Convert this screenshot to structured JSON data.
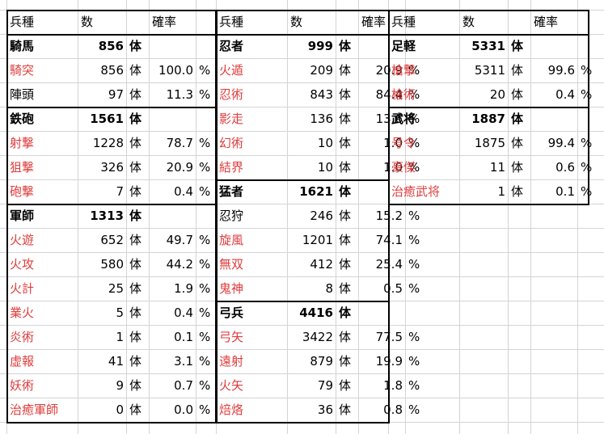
{
  "header": {
    "type": "兵種",
    "count": "数",
    "rate": "確率"
  },
  "unit": "体",
  "pct": "%",
  "groups": [
    {
      "col": 0,
      "row": 1,
      "name": "騎馬",
      "total": "856",
      "items": [
        {
          "name": "騎突",
          "count": "856",
          "rate": "100.0"
        },
        {
          "name": "陣頭",
          "count": "97",
          "rate": "11.3",
          "black": true
        }
      ]
    },
    {
      "col": 0,
      "row": 4,
      "name": "鉄砲",
      "total": "1561",
      "items": [
        {
          "name": "射撃",
          "count": "1228",
          "rate": "78.7"
        },
        {
          "name": "狙撃",
          "count": "326",
          "rate": "20.9"
        },
        {
          "name": "砲撃",
          "count": "7",
          "rate": "0.4"
        }
      ]
    },
    {
      "col": 0,
      "row": 8,
      "name": "軍師",
      "total": "1313",
      "items": [
        {
          "name": "火遊",
          "count": "652",
          "rate": "49.7"
        },
        {
          "name": "火攻",
          "count": "580",
          "rate": "44.2"
        },
        {
          "name": "火計",
          "count": "25",
          "rate": "1.9"
        },
        {
          "name": "業火",
          "count": "5",
          "rate": "0.4"
        },
        {
          "name": "炎術",
          "count": "1",
          "rate": "0.1"
        },
        {
          "name": "虚報",
          "count": "41",
          "rate": "3.1"
        },
        {
          "name": "妖術",
          "count": "9",
          "rate": "0.7"
        },
        {
          "name": "治癒軍師",
          "count": "0",
          "rate": "0.0"
        }
      ]
    },
    {
      "col": 1,
      "row": 1,
      "name": "忍者",
      "total": "999",
      "items": [
        {
          "name": "火遁",
          "count": "209",
          "rate": "20.9"
        },
        {
          "name": "忍術",
          "count": "843",
          "rate": "84.4"
        },
        {
          "name": "影走",
          "count": "136",
          "rate": "13.6"
        },
        {
          "name": "幻術",
          "count": "10",
          "rate": "1.0"
        },
        {
          "name": "結界",
          "count": "10",
          "rate": "1.0"
        }
      ]
    },
    {
      "col": 1,
      "row": 7,
      "name": "猛者",
      "total": "1621",
      "items": [
        {
          "name": "忍狩",
          "count": "246",
          "rate": "15.2",
          "black": true
        },
        {
          "name": "旋風",
          "count": "1201",
          "rate": "74.1"
        },
        {
          "name": "無双",
          "count": "412",
          "rate": "25.4"
        },
        {
          "name": "鬼神",
          "count": "8",
          "rate": "0.5"
        }
      ]
    },
    {
      "col": 1,
      "row": 12,
      "name": "弓兵",
      "total": "4416",
      "items": [
        {
          "name": "弓矢",
          "count": "3422",
          "rate": "77.5"
        },
        {
          "name": "遠射",
          "count": "879",
          "rate": "19.9"
        },
        {
          "name": "火矢",
          "count": "79",
          "rate": "1.8"
        },
        {
          "name": "焙烙",
          "count": "36",
          "rate": "0.8"
        }
      ]
    },
    {
      "col": 2,
      "row": 1,
      "name": "足軽",
      "total": "5331",
      "items": [
        {
          "name": "槍撃",
          "count": "5311",
          "rate": "99.6"
        },
        {
          "name": "槍術",
          "count": "20",
          "rate": "0.4"
        }
      ]
    },
    {
      "col": 2,
      "row": 4,
      "name": "武将",
      "total": "1887",
      "items": [
        {
          "name": "号令",
          "count": "1875",
          "rate": "99.4"
        },
        {
          "name": "豪傑",
          "count": "11",
          "rate": "0.6"
        },
        {
          "name": "治癒武将",
          "count": "1",
          "rate": "0.1"
        }
      ]
    }
  ]
}
